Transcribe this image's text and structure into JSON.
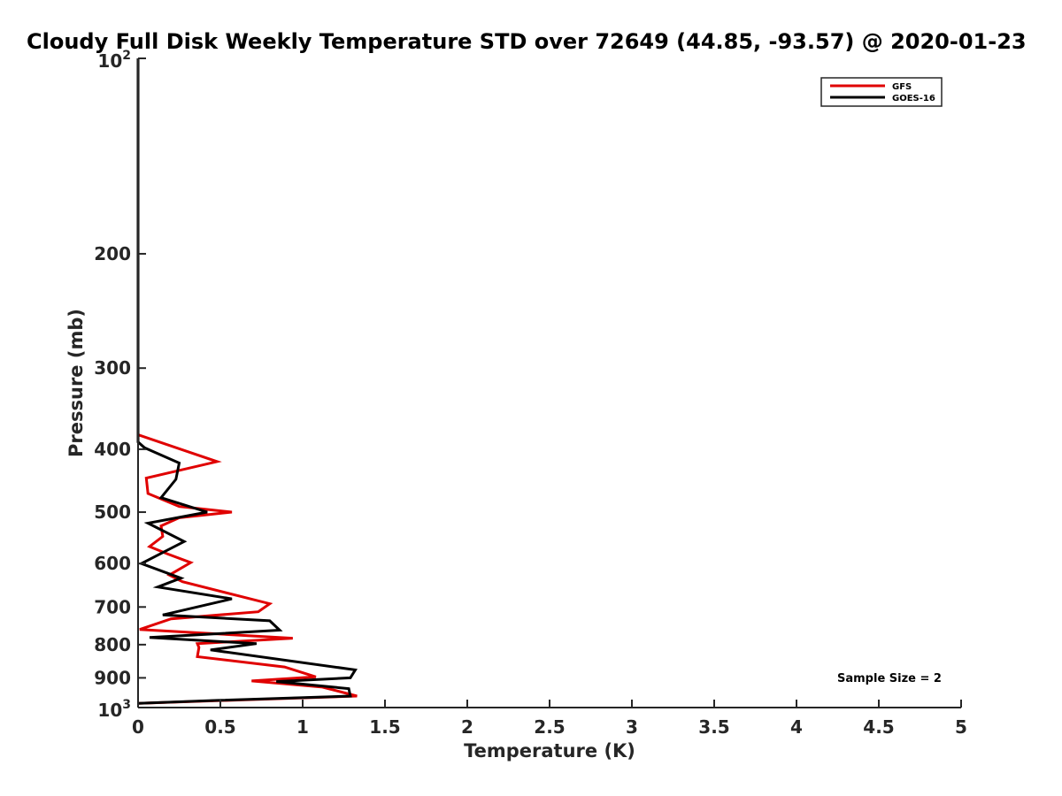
{
  "chart_data": {
    "type": "line",
    "title": "Cloudy Full Disk Weekly Temperature STD over 72649 (44.85, -93.57) @ 2020-01-23",
    "xlabel": "Temperature (K)",
    "ylabel": "Pressure (mb)",
    "xlim": [
      0,
      5
    ],
    "ylim": [
      100,
      1000
    ],
    "y_scale": "log",
    "y_reversed": true,
    "x_ticks": [
      "0",
      "0.5",
      "1",
      "1.5",
      "2",
      "2.5",
      "3",
      "3.5",
      "4",
      "4.5",
      "5"
    ],
    "y_ticks": [
      {
        "value": 100,
        "base": "10",
        "exp": "2"
      },
      {
        "value": 200,
        "label": "200"
      },
      {
        "value": 300,
        "label": "300"
      },
      {
        "value": 400,
        "label": "400"
      },
      {
        "value": 500,
        "label": "500"
      },
      {
        "value": 600,
        "label": "600"
      },
      {
        "value": 700,
        "label": "700"
      },
      {
        "value": 800,
        "label": "800"
      },
      {
        "value": 900,
        "label": "900"
      },
      {
        "value": 1000,
        "base": "10",
        "exp": "3"
      }
    ],
    "grid": false,
    "legend_position": "top-right",
    "annotation": "Sample Size = 2",
    "series": [
      {
        "name": "GFS",
        "color": "#e00000",
        "points": [
          [
            0,
            100
          ],
          [
            0,
            380
          ],
          [
            0.48,
            418
          ],
          [
            0.05,
            443
          ],
          [
            0.06,
            468
          ],
          [
            0.25,
            490
          ],
          [
            0.57,
            500
          ],
          [
            0.25,
            510
          ],
          [
            0.14,
            525
          ],
          [
            0.15,
            545
          ],
          [
            0.07,
            565
          ],
          [
            0.18,
            580
          ],
          [
            0.32,
            598
          ],
          [
            0.19,
            625
          ],
          [
            0.27,
            640
          ],
          [
            0.8,
            692
          ],
          [
            0.73,
            712
          ],
          [
            0.2,
            730
          ],
          [
            0.01,
            758
          ],
          [
            0.94,
            782
          ],
          [
            0.36,
            797
          ],
          [
            0.37,
            808
          ],
          [
            0.36,
            835
          ],
          [
            0.89,
            866
          ],
          [
            1.08,
            897
          ],
          [
            0.69,
            910
          ],
          [
            1.12,
            930
          ],
          [
            1.33,
            960
          ],
          [
            0.0,
            985
          ]
        ]
      },
      {
        "name": "GOES-16",
        "color": "#000000",
        "points": [
          [
            0,
            100
          ],
          [
            0,
            390
          ],
          [
            0.04,
            398
          ],
          [
            0.25,
            420
          ],
          [
            0.23,
            445
          ],
          [
            0.14,
            475
          ],
          [
            0.42,
            500
          ],
          [
            0.06,
            520
          ],
          [
            0.28,
            555
          ],
          [
            0.02,
            600
          ],
          [
            0.26,
            632
          ],
          [
            0.12,
            652
          ],
          [
            0.57,
            680
          ],
          [
            0.15,
            720
          ],
          [
            0.8,
            735
          ],
          [
            0.86,
            760
          ],
          [
            0.07,
            780
          ],
          [
            0.72,
            797
          ],
          [
            0.44,
            815
          ],
          [
            1.32,
            875
          ],
          [
            1.29,
            900
          ],
          [
            0.84,
            912
          ],
          [
            1.28,
            935
          ],
          [
            1.29,
            960
          ],
          [
            0.48,
            975
          ],
          [
            0.0,
            985
          ]
        ]
      }
    ]
  }
}
